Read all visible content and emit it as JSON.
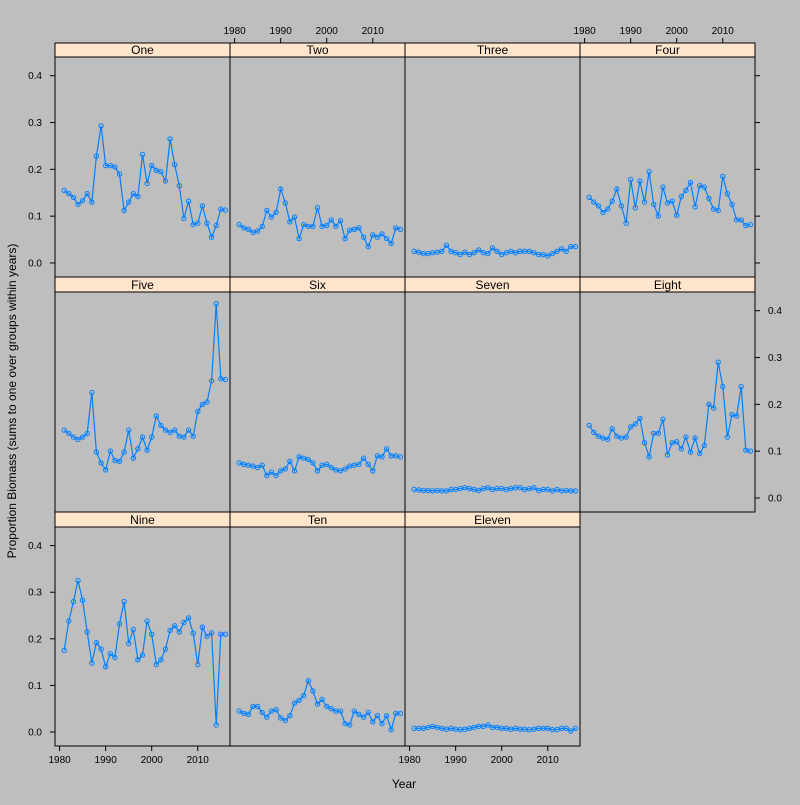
{
  "chart_data": {
    "type": "line",
    "layout": "trellis 4 columns x 3 rows",
    "xlabel": "Year",
    "ylabel": "Proportion Biomass (sums to one over groups within years)",
    "xlim": [
      1979,
      2017
    ],
    "ylim": [
      -0.03,
      0.44
    ],
    "x_ticks": [
      1980,
      1990,
      2000,
      2010
    ],
    "x_tick_labels": [
      "1980",
      "1990",
      "2000",
      "2010"
    ],
    "y_ticks": [
      0.0,
      0.1,
      0.2,
      0.3,
      0.4
    ],
    "y_tick_labels": [
      "0.0",
      "0.1",
      "0.2",
      "0.3",
      "0.4"
    ],
    "grid": false,
    "colors": {
      "background": "#bebebe",
      "strip": "#ffe5cc",
      "line": "#0080ff"
    },
    "x": [
      1981,
      1982,
      1983,
      1984,
      1985,
      1986,
      1987,
      1988,
      1989,
      1990,
      1991,
      1992,
      1993,
      1994,
      1995,
      1996,
      1997,
      1998,
      1999,
      2000,
      2001,
      2002,
      2003,
      2004,
      2005,
      2006,
      2007,
      2008,
      2009,
      2010,
      2011,
      2012,
      2013,
      2014,
      2015,
      2016
    ],
    "series": [
      {
        "name": "One",
        "values": [
          0.155,
          0.148,
          0.14,
          0.125,
          0.133,
          0.148,
          0.13,
          0.228,
          0.293,
          0.208,
          0.208,
          0.205,
          0.19,
          0.112,
          0.13,
          0.148,
          0.142,
          0.232,
          0.17,
          0.208,
          0.198,
          0.195,
          0.175,
          0.265,
          0.21,
          0.165,
          0.095,
          0.132,
          0.082,
          0.085,
          0.122,
          0.085,
          0.055,
          0.08,
          0.115,
          0.113
        ]
      },
      {
        "name": "Two",
        "values": [
          0.082,
          0.075,
          0.072,
          0.065,
          0.068,
          0.078,
          0.112,
          0.098,
          0.108,
          0.158,
          0.128,
          0.088,
          0.098,
          0.052,
          0.082,
          0.078,
          0.078,
          0.118,
          0.078,
          0.08,
          0.092,
          0.078,
          0.09,
          0.052,
          0.07,
          0.072,
          0.075,
          0.055,
          0.035,
          0.06,
          0.055,
          0.062,
          0.052,
          0.042,
          0.075,
          0.072
        ]
      },
      {
        "name": "Three",
        "values": [
          0.025,
          0.023,
          0.02,
          0.02,
          0.022,
          0.023,
          0.025,
          0.038,
          0.025,
          0.022,
          0.018,
          0.023,
          0.018,
          0.022,
          0.028,
          0.022,
          0.02,
          0.032,
          0.025,
          0.018,
          0.022,
          0.025,
          0.022,
          0.025,
          0.025,
          0.025,
          0.022,
          0.018,
          0.018,
          0.015,
          0.02,
          0.025,
          0.03,
          0.025,
          0.035,
          0.035
        ]
      },
      {
        "name": "Four",
        "values": [
          0.14,
          0.13,
          0.122,
          0.108,
          0.115,
          0.132,
          0.158,
          0.122,
          0.085,
          0.178,
          0.118,
          0.175,
          0.13,
          0.195,
          0.125,
          0.1,
          0.162,
          0.128,
          0.132,
          0.102,
          0.142,
          0.155,
          0.172,
          0.12,
          0.165,
          0.162,
          0.138,
          0.115,
          0.112,
          0.185,
          0.148,
          0.125,
          0.092,
          0.092,
          0.08,
          0.082
        ]
      },
      {
        "name": "Five",
        "values": [
          0.145,
          0.138,
          0.13,
          0.125,
          0.13,
          0.138,
          0.225,
          0.098,
          0.075,
          0.06,
          0.1,
          0.08,
          0.078,
          0.098,
          0.145,
          0.085,
          0.105,
          0.13,
          0.102,
          0.13,
          0.175,
          0.155,
          0.145,
          0.14,
          0.145,
          0.132,
          0.13,
          0.145,
          0.132,
          0.185,
          0.2,
          0.205,
          0.25,
          0.415,
          0.255,
          0.253
        ]
      },
      {
        "name": "Six",
        "values": [
          0.075,
          0.072,
          0.07,
          0.068,
          0.065,
          0.07,
          0.048,
          0.055,
          0.048,
          0.058,
          0.062,
          0.078,
          0.058,
          0.088,
          0.085,
          0.082,
          0.075,
          0.058,
          0.07,
          0.072,
          0.065,
          0.06,
          0.058,
          0.062,
          0.068,
          0.07,
          0.072,
          0.085,
          0.072,
          0.058,
          0.09,
          0.088,
          0.105,
          0.09,
          0.09,
          0.088
        ]
      },
      {
        "name": "Seven",
        "values": [
          0.018,
          0.017,
          0.016,
          0.016,
          0.015,
          0.016,
          0.015,
          0.015,
          0.018,
          0.018,
          0.02,
          0.022,
          0.02,
          0.018,
          0.016,
          0.02,
          0.022,
          0.018,
          0.02,
          0.02,
          0.018,
          0.02,
          0.022,
          0.022,
          0.018,
          0.02,
          0.022,
          0.016,
          0.018,
          0.018,
          0.015,
          0.018,
          0.015,
          0.016,
          0.015,
          0.015
        ]
      },
      {
        "name": "Eight",
        "values": [
          0.155,
          0.14,
          0.132,
          0.128,
          0.125,
          0.148,
          0.132,
          0.128,
          0.13,
          0.152,
          0.158,
          0.17,
          0.118,
          0.088,
          0.138,
          0.138,
          0.168,
          0.092,
          0.118,
          0.12,
          0.105,
          0.13,
          0.098,
          0.128,
          0.095,
          0.112,
          0.2,
          0.192,
          0.29,
          0.238,
          0.13,
          0.178,
          0.175,
          0.238,
          0.102,
          0.1
        ]
      },
      {
        "name": "Nine",
        "values": [
          0.175,
          0.238,
          0.28,
          0.325,
          0.283,
          0.215,
          0.148,
          0.192,
          0.178,
          0.14,
          0.168,
          0.16,
          0.232,
          0.28,
          0.19,
          0.22,
          0.155,
          0.165,
          0.238,
          0.21,
          0.145,
          0.155,
          0.178,
          0.218,
          0.228,
          0.215,
          0.235,
          0.245,
          0.212,
          0.145,
          0.225,
          0.205,
          0.213,
          0.015,
          0.21,
          0.21
        ]
      },
      {
        "name": "Ten",
        "values": [
          0.045,
          0.04,
          0.038,
          0.055,
          0.055,
          0.042,
          0.032,
          0.045,
          0.048,
          0.03,
          0.025,
          0.035,
          0.062,
          0.068,
          0.078,
          0.11,
          0.088,
          0.06,
          0.07,
          0.055,
          0.05,
          0.045,
          0.045,
          0.018,
          0.015,
          0.045,
          0.038,
          0.032,
          0.042,
          0.022,
          0.035,
          0.018,
          0.035,
          0.005,
          0.04,
          0.04
        ]
      },
      {
        "name": "Eleven",
        "values": [
          0.008,
          0.008,
          0.008,
          0.01,
          0.012,
          0.01,
          0.008,
          0.006,
          0.008,
          0.006,
          0.005,
          0.006,
          0.008,
          0.01,
          0.012,
          0.012,
          0.015,
          0.01,
          0.01,
          0.008,
          0.008,
          0.006,
          0.008,
          0.006,
          0.006,
          0.005,
          0.006,
          0.008,
          0.008,
          0.008,
          0.005,
          0.005,
          0.008,
          0.008,
          0.002,
          0.008
        ]
      }
    ]
  }
}
